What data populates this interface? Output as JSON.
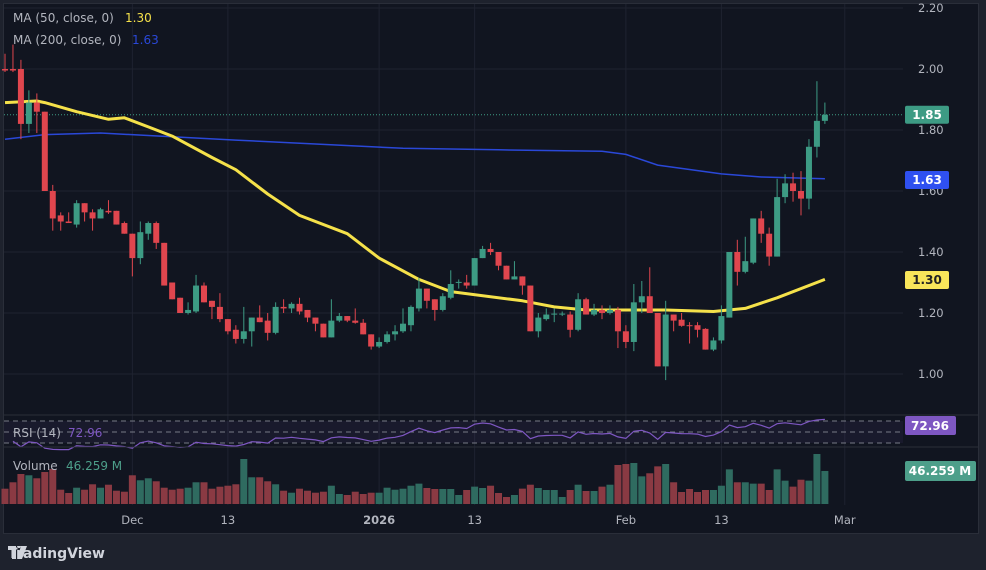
{
  "legend": {
    "ma50_label": "MA (50, close, 0)",
    "ma50_value": "1.30",
    "ma200_label": "MA (200, close, 0)",
    "ma200_value": "1.63",
    "rsi_label": "RSI (14)",
    "rsi_value": "72.96",
    "volume_label": "Volume",
    "volume_value": "46.259 M"
  },
  "price_axis": {
    "ticks": [
      "2.20",
      "2.00",
      "1.80",
      "1.60",
      "1.40",
      "1.20",
      "1.00"
    ],
    "tick_values": [
      2.2,
      2.0,
      1.8,
      1.6,
      1.4,
      1.2,
      1.0
    ],
    "last_price_tag": "1.85",
    "last_price": 1.85,
    "ma200_tag": "1.63",
    "ma50_tag": "1.30",
    "rsi_tag": "72.96",
    "volume_tag": "46.259 M"
  },
  "time_axis": {
    "labels": [
      "Dec",
      "13",
      "2026",
      "13",
      "Feb",
      "13",
      "Mar"
    ]
  },
  "colors": {
    "up": "#3d9b84",
    "down": "#e0464e",
    "vol_up": "#2f6b60",
    "vol_down": "#8a3a43",
    "ma50": "#f5e14a",
    "ma200": "#2a48d8",
    "rsi": "#7e57c2",
    "ma200_tag": "#2f50f0",
    "ma50_tag": "#f8e55a"
  },
  "brand": {
    "name": "TradingView",
    "icon": "tradingview-logo-icon"
  },
  "chart_data": {
    "type": "candlestick",
    "ylim": [
      0.95,
      2.22
    ],
    "ohlc": [
      [
        2.0,
        2.05,
        1.99,
        1.995
      ],
      [
        2.0,
        2.08,
        1.99,
        1.995
      ],
      [
        2.0,
        2.03,
        1.77,
        1.82
      ],
      [
        1.82,
        1.93,
        1.79,
        1.89
      ],
      [
        1.89,
        1.92,
        1.79,
        1.86
      ],
      [
        1.86,
        1.86,
        1.6,
        1.6
      ],
      [
        1.6,
        1.62,
        1.47,
        1.51
      ],
      [
        1.52,
        1.53,
        1.47,
        1.5
      ],
      [
        1.5,
        1.53,
        1.495,
        1.495
      ],
      [
        1.49,
        1.57,
        1.48,
        1.56
      ],
      [
        1.56,
        1.56,
        1.5,
        1.53
      ],
      [
        1.53,
        1.54,
        1.47,
        1.51
      ],
      [
        1.51,
        1.545,
        1.51,
        1.54
      ],
      [
        1.535,
        1.57,
        1.525,
        1.53
      ],
      [
        1.535,
        1.535,
        1.49,
        1.49
      ],
      [
        1.495,
        1.5,
        1.46,
        1.46
      ],
      [
        1.46,
        1.46,
        1.32,
        1.38
      ],
      [
        1.38,
        1.5,
        1.36,
        1.465
      ],
      [
        1.46,
        1.5,
        1.44,
        1.495
      ],
      [
        1.495,
        1.5,
        1.41,
        1.43
      ],
      [
        1.43,
        1.43,
        1.29,
        1.29
      ],
      [
        1.3,
        1.3,
        1.245,
        1.245
      ],
      [
        1.25,
        1.25,
        1.2,
        1.2
      ],
      [
        1.2,
        1.235,
        1.195,
        1.21
      ],
      [
        1.205,
        1.325,
        1.2,
        1.29
      ],
      [
        1.29,
        1.3,
        1.235,
        1.235
      ],
      [
        1.24,
        1.24,
        1.18,
        1.22
      ],
      [
        1.22,
        1.265,
        1.17,
        1.18
      ],
      [
        1.18,
        1.18,
        1.13,
        1.14
      ],
      [
        1.145,
        1.16,
        1.1,
        1.115
      ],
      [
        1.115,
        1.22,
        1.1,
        1.14
      ],
      [
        1.14,
        1.185,
        1.09,
        1.185
      ],
      [
        1.185,
        1.225,
        1.17,
        1.17
      ],
      [
        1.175,
        1.2,
        1.11,
        1.135
      ],
      [
        1.135,
        1.235,
        1.13,
        1.22
      ],
      [
        1.22,
        1.245,
        1.2,
        1.215
      ],
      [
        1.215,
        1.235,
        1.2,
        1.23
      ],
      [
        1.23,
        1.25,
        1.195,
        1.205
      ],
      [
        1.21,
        1.21,
        1.17,
        1.185
      ],
      [
        1.185,
        1.185,
        1.14,
        1.165
      ],
      [
        1.165,
        1.165,
        1.12,
        1.12
      ],
      [
        1.12,
        1.245,
        1.12,
        1.175
      ],
      [
        1.175,
        1.2,
        1.17,
        1.19
      ],
      [
        1.19,
        1.19,
        1.17,
        1.175
      ],
      [
        1.175,
        1.215,
        1.165,
        1.168
      ],
      [
        1.168,
        1.18,
        1.13,
        1.13
      ],
      [
        1.13,
        1.13,
        1.08,
        1.09
      ],
      [
        1.09,
        1.12,
        1.085,
        1.105
      ],
      [
        1.105,
        1.14,
        1.1,
        1.13
      ],
      [
        1.13,
        1.16,
        1.11,
        1.14
      ],
      [
        1.14,
        1.215,
        1.135,
        1.165
      ],
      [
        1.16,
        1.225,
        1.14,
        1.22
      ],
      [
        1.215,
        1.315,
        1.205,
        1.28
      ],
      [
        1.28,
        1.28,
        1.215,
        1.24
      ],
      [
        1.245,
        1.245,
        1.175,
        1.21
      ],
      [
        1.21,
        1.265,
        1.205,
        1.255
      ],
      [
        1.25,
        1.34,
        1.245,
        1.295
      ],
      [
        1.3,
        1.31,
        1.28,
        1.302
      ],
      [
        1.3,
        1.325,
        1.28,
        1.29
      ],
      [
        1.29,
        1.38,
        1.29,
        1.38
      ],
      [
        1.38,
        1.42,
        1.38,
        1.41
      ],
      [
        1.41,
        1.43,
        1.39,
        1.4
      ],
      [
        1.4,
        1.4,
        1.34,
        1.355
      ],
      [
        1.355,
        1.355,
        1.31,
        1.31
      ],
      [
        1.31,
        1.37,
        1.31,
        1.32
      ],
      [
        1.32,
        1.32,
        1.26,
        1.29
      ],
      [
        1.29,
        1.29,
        1.14,
        1.14
      ],
      [
        1.14,
        1.2,
        1.12,
        1.185
      ],
      [
        1.18,
        1.215,
        1.175,
        1.195
      ],
      [
        1.195,
        1.215,
        1.17,
        1.198
      ],
      [
        1.195,
        1.205,
        1.19,
        1.198
      ],
      [
        1.195,
        1.205,
        1.12,
        1.145
      ],
      [
        1.145,
        1.265,
        1.14,
        1.245
      ],
      [
        1.245,
        1.25,
        1.195,
        1.195
      ],
      [
        1.195,
        1.23,
        1.19,
        1.21
      ],
      [
        1.21,
        1.225,
        1.18,
        1.2
      ],
      [
        1.2,
        1.225,
        1.195,
        1.21
      ],
      [
        1.21,
        1.22,
        1.085,
        1.14
      ],
      [
        1.14,
        1.16,
        1.085,
        1.105
      ],
      [
        1.105,
        1.295,
        1.075,
        1.235
      ],
      [
        1.235,
        1.305,
        1.2,
        1.255
      ],
      [
        1.255,
        1.35,
        1.2,
        1.2
      ],
      [
        1.2,
        1.2,
        1.025,
        1.025
      ],
      [
        1.025,
        1.24,
        0.98,
        1.195
      ],
      [
        1.195,
        1.195,
        1.14,
        1.175
      ],
      [
        1.178,
        1.2,
        1.155,
        1.158
      ],
      [
        1.16,
        1.17,
        1.1,
        1.157
      ],
      [
        1.16,
        1.17,
        1.12,
        1.145
      ],
      [
        1.148,
        1.15,
        1.08,
        1.08
      ],
      [
        1.08,
        1.12,
        1.075,
        1.11
      ],
      [
        1.11,
        1.225,
        1.1,
        1.19
      ],
      [
        1.185,
        1.4,
        1.185,
        1.4
      ],
      [
        1.4,
        1.44,
        1.29,
        1.335
      ],
      [
        1.335,
        1.45,
        1.33,
        1.37
      ],
      [
        1.365,
        1.51,
        1.36,
        1.51
      ],
      [
        1.51,
        1.535,
        1.43,
        1.46
      ],
      [
        1.46,
        1.48,
        1.355,
        1.385
      ],
      [
        1.385,
        1.64,
        1.385,
        1.58
      ],
      [
        1.58,
        1.655,
        1.56,
        1.625
      ],
      [
        1.625,
        1.66,
        1.565,
        1.6
      ],
      [
        1.6,
        1.665,
        1.52,
        1.575
      ],
      [
        1.575,
        1.77,
        1.54,
        1.745
      ],
      [
        1.745,
        1.96,
        1.71,
        1.83
      ],
      [
        1.83,
        1.89,
        1.82,
        1.85
      ]
    ],
    "volume_millions": [
      21.4,
      30.4,
      42,
      40.2,
      36,
      44.8,
      49,
      20,
      15.4,
      22.8,
      20,
      27.6,
      22.8,
      27,
      18.6,
      17.2,
      40.2,
      33.2,
      36,
      31.8,
      22.8,
      20,
      21.4,
      22.8,
      30.4,
      30.4,
      21.4,
      24.2,
      25.6,
      27.6,
      63,
      37.4,
      37.4,
      31.8,
      27.6,
      18.6,
      15.8,
      21.4,
      18.6,
      15.8,
      17.2,
      25.6,
      14,
      12.6,
      17.2,
      14,
      15.8,
      15.8,
      22.8,
      20,
      21.4,
      25.6,
      28.5,
      22.4,
      21,
      21,
      21,
      12.6,
      19.6,
      24.3,
      22.4,
      25.6,
      15.4,
      9.8,
      12.6,
      21.5,
      27,
      22.4,
      19.6,
      19.6,
      9.8,
      19.6,
      27,
      18.2,
      18.2,
      24.3,
      27,
      54.6,
      56,
      57.4,
      38.7,
      43,
      52.7,
      56,
      30.4,
      16.8,
      21,
      16.8,
      19.6,
      19.6,
      25.6,
      48.5,
      30.4,
      30.4,
      28.5,
      28.5,
      19.6,
      48.5,
      32.7,
      24.3,
      34,
      32.7,
      70,
      46.259
    ],
    "ma50": [
      [
        0,
        1.89
      ],
      [
        4,
        1.895
      ],
      [
        5,
        1.89
      ],
      [
        9,
        1.86
      ],
      [
        13,
        1.835
      ],
      [
        15,
        1.84
      ],
      [
        18,
        1.81
      ],
      [
        21,
        1.78
      ],
      [
        26,
        1.71
      ],
      [
        29,
        1.67
      ],
      [
        33,
        1.59
      ],
      [
        37,
        1.52
      ],
      [
        43,
        1.46
      ],
      [
        47,
        1.38
      ],
      [
        52,
        1.31
      ],
      [
        56,
        1.27
      ],
      [
        65,
        1.24
      ],
      [
        69,
        1.22
      ],
      [
        73,
        1.21
      ],
      [
        83,
        1.21
      ],
      [
        89,
        1.205
      ],
      [
        93,
        1.215
      ],
      [
        97,
        1.25
      ],
      [
        103,
        1.31
      ]
    ],
    "ma200": [
      [
        0,
        1.77
      ],
      [
        5,
        1.785
      ],
      [
        12,
        1.79
      ],
      [
        29,
        1.767
      ],
      [
        50,
        1.74
      ],
      [
        62,
        1.735
      ],
      [
        75,
        1.73
      ],
      [
        78,
        1.72
      ],
      [
        82,
        1.685
      ],
      [
        90,
        1.656
      ],
      [
        95,
        1.646
      ],
      [
        103,
        1.64
      ]
    ],
    "rsi_levels": [
      70,
      50,
      30
    ]
  }
}
